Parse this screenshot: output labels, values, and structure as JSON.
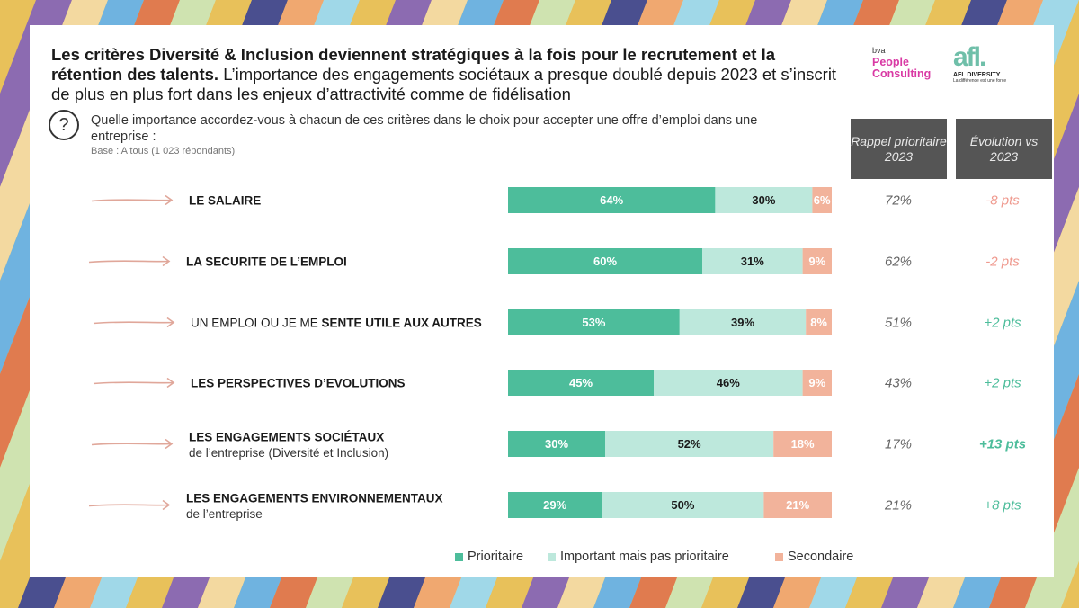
{
  "headline": {
    "bold": "Les critères Diversité & Inclusion deviennent stratégiques à la fois pour le recrutement et la rétention des talents.",
    "normal": " L’importance des engagements sociétaux a presque doublé depuis 2023 et s’inscrit de plus en plus fort dans les enjeux d’attractivité comme de fidélisation"
  },
  "logos": {
    "bva_small": "bva",
    "bva_name": "People Consulting",
    "afl_mark": "afl.",
    "afl_name": "AFL DIVERSITY",
    "afl_tag": "La différence est une force"
  },
  "question": {
    "icon": "?",
    "text": "Quelle importance accordez-vous à chacun de ces critères dans le choix pour accepter une offre d’emploi dans une entreprise :",
    "base": "Base : A tous (1 023 répondants)"
  },
  "columns": {
    "rappel": "Rappel prioritaire 2023",
    "evolution": "Évolution vs 2023"
  },
  "colors": {
    "prioritaire": "#4dbd9b",
    "important": "#bde8dc",
    "secondaire": "#f2b39b",
    "negative": "#ef9a8f",
    "positive": "#4dbd9b",
    "arrow": "#e0a79a",
    "pct_light": "#ffffff"
  },
  "chart_data": {
    "type": "bar",
    "stacked": true,
    "orientation": "horizontal",
    "xlim": [
      0,
      100
    ],
    "categories": [
      {
        "parts": [
          {
            "text": "LE SALAIRE",
            "bold": true
          }
        ],
        "sub": ""
      },
      {
        "parts": [
          {
            "text": "LA SECURITE DE L’EMPLOI",
            "bold": true
          }
        ],
        "sub": ""
      },
      {
        "parts": [
          {
            "text": "UN EMPLOI OU JE ME ",
            "bold": false
          },
          {
            "text": "SENTE UTILE AUX AUTRES",
            "bold": true
          }
        ],
        "sub": ""
      },
      {
        "parts": [
          {
            "text": "LES PERSPECTIVES D’EVOLUTIONS",
            "bold": true
          }
        ],
        "sub": ""
      },
      {
        "parts": [
          {
            "text": "LES ENGAGEMENTS SOCIÉTAUX",
            "bold": true
          }
        ],
        "sub": "de l’entreprise (Diversité et Inclusion)"
      },
      {
        "parts": [
          {
            "text": "LES ENGAGEMENTS ENVIRONNEMENTAUX",
            "bold": true
          }
        ],
        "sub": "de l’entreprise"
      }
    ],
    "series": [
      {
        "name": "Prioritaire",
        "key": "prioritaire",
        "values": [
          64,
          60,
          53,
          45,
          30,
          29
        ]
      },
      {
        "name": "Important mais pas prioritaire",
        "key": "important",
        "values": [
          30,
          31,
          39,
          46,
          52,
          50
        ]
      },
      {
        "name": "Secondaire",
        "key": "secondaire",
        "values": [
          6,
          9,
          8,
          9,
          18,
          21
        ]
      }
    ],
    "rappel_2023": [
      "72%",
      "62%",
      "51%",
      "43%",
      "17%",
      "21%"
    ],
    "evolution": [
      "-8 pts",
      "-2 pts",
      "+2 pts",
      "+2 pts",
      "+13 pts",
      "+8 pts"
    ],
    "evolution_emphasis": [
      false,
      false,
      false,
      false,
      true,
      false
    ]
  }
}
